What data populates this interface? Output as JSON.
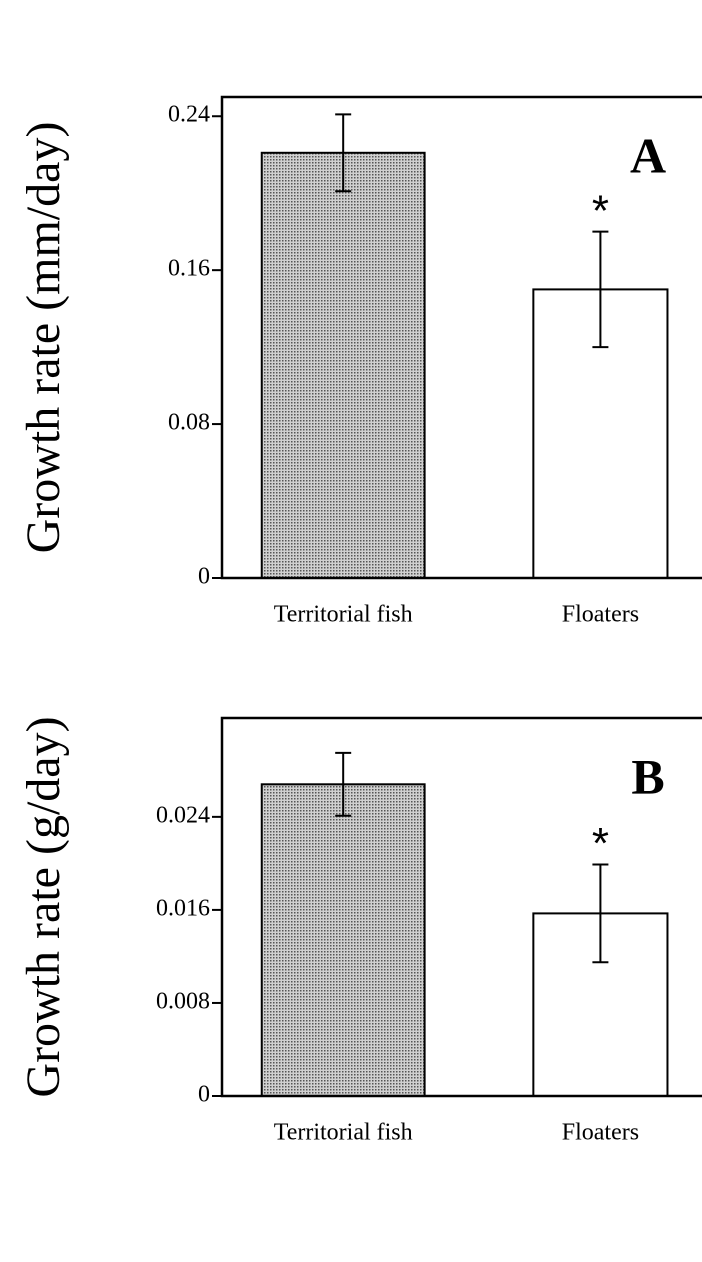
{
  "chart_data": [
    {
      "type": "bar",
      "panel_label": "A",
      "ylabel": "Growth rate (mm/day)",
      "categories": [
        "Territorial fish",
        "Floaters"
      ],
      "values": [
        0.221,
        0.15
      ],
      "errors": [
        0.02,
        0.03
      ],
      "colors": [
        "#a8a8a8",
        "#ffffff"
      ],
      "annotation": {
        "category": "Floaters",
        "text": "*"
      },
      "ylim": [
        0,
        0.25
      ],
      "yticks": [
        0,
        0.08,
        0.16,
        0.24
      ]
    },
    {
      "type": "bar",
      "panel_label": "B",
      "ylabel": "Growth rate (g/day)",
      "categories": [
        "Territorial fish",
        "Floaters"
      ],
      "values": [
        0.0268,
        0.0157
      ],
      "errors": [
        0.0027,
        0.0042
      ],
      "colors": [
        "#a8a8a8",
        "#ffffff"
      ],
      "annotation": {
        "category": "Floaters",
        "text": "*"
      },
      "ylim": [
        0,
        0.0325
      ],
      "yticks": [
        0,
        0.008,
        0.016,
        0.024
      ]
    }
  ]
}
